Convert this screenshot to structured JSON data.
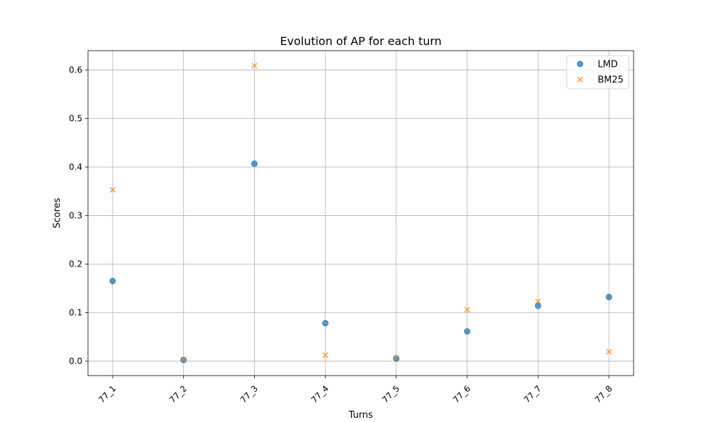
{
  "chart_data": {
    "type": "scatter",
    "title": "Evolution of AP for each turn",
    "xlabel": "Turns",
    "ylabel": "Scores",
    "categories": [
      "77_1",
      "77_2",
      "77_3",
      "77_4",
      "77_5",
      "77_6",
      "77_7",
      "77_8"
    ],
    "yticks": [
      "0.0",
      "0.1",
      "0.2",
      "0.3",
      "0.4",
      "0.5",
      "0.6"
    ],
    "ylim": [
      -0.03,
      0.64
    ],
    "grid": true,
    "legend_position": "top-right",
    "series": [
      {
        "name": "LMD",
        "marker": "circle",
        "color": "#1f77b4",
        "values": [
          0.165,
          0.002,
          0.407,
          0.078,
          0.005,
          0.061,
          0.114,
          0.132
        ]
      },
      {
        "name": "BM25",
        "marker": "x",
        "color": "#ff7f0e",
        "values": [
          0.353,
          0.003,
          0.609,
          0.012,
          0.007,
          0.106,
          0.123,
          0.019
        ]
      }
    ]
  }
}
